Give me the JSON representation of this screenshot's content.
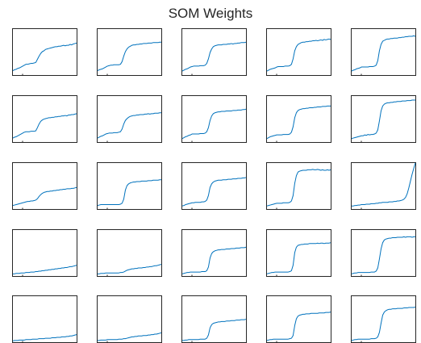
{
  "chart_data": {
    "type": "line",
    "title": "SOM Weights",
    "layout": {
      "rows": 5,
      "cols": 5
    },
    "line_color": "#0072BD",
    "axes_color": "#262626",
    "background": "#ffffff",
    "grid": false,
    "x": [
      1,
      2,
      3,
      4,
      5,
      6,
      7,
      8,
      9,
      10,
      11,
      12,
      13,
      14,
      15,
      16,
      17,
      18,
      19,
      20,
      21,
      22,
      23,
      24,
      25,
      26,
      27,
      28,
      29,
      30,
      31,
      32,
      33,
      34,
      35,
      36,
      37,
      38,
      39,
      40
    ],
    "xlim": [
      1,
      40
    ],
    "ylim": [
      0,
      1
    ],
    "neurons": [
      [
        0.08,
        0.1,
        0.11,
        0.13,
        0.14,
        0.16,
        0.18,
        0.2,
        0.22,
        0.22,
        0.23,
        0.24,
        0.24,
        0.25,
        0.26,
        0.33,
        0.4,
        0.46,
        0.5,
        0.52,
        0.55,
        0.56,
        0.57,
        0.58,
        0.59,
        0.6,
        0.61,
        0.61,
        0.62,
        0.62,
        0.63,
        0.64,
        0.63,
        0.64,
        0.64,
        0.66,
        0.65,
        0.67,
        0.68,
        0.69
      ],
      [
        0.08,
        0.1,
        0.11,
        0.12,
        0.14,
        0.16,
        0.18,
        0.19,
        0.2,
        0.2,
        0.21,
        0.21,
        0.21,
        0.21,
        0.22,
        0.28,
        0.4,
        0.5,
        0.56,
        0.6,
        0.62,
        0.64,
        0.65,
        0.65,
        0.66,
        0.66,
        0.67,
        0.67,
        0.68,
        0.68,
        0.68,
        0.69,
        0.69,
        0.69,
        0.7,
        0.7,
        0.7,
        0.7,
        0.71,
        0.71
      ],
      [
        0.07,
        0.09,
        0.11,
        0.12,
        0.14,
        0.16,
        0.17,
        0.18,
        0.18,
        0.18,
        0.18,
        0.19,
        0.19,
        0.19,
        0.2,
        0.24,
        0.34,
        0.48,
        0.56,
        0.61,
        0.63,
        0.64,
        0.65,
        0.65,
        0.65,
        0.66,
        0.66,
        0.66,
        0.67,
        0.67,
        0.68,
        0.67,
        0.68,
        0.68,
        0.69,
        0.69,
        0.7,
        0.7,
        0.7,
        0.71
      ],
      [
        0.07,
        0.09,
        0.11,
        0.12,
        0.13,
        0.14,
        0.16,
        0.17,
        0.17,
        0.17,
        0.17,
        0.18,
        0.18,
        0.18,
        0.19,
        0.22,
        0.34,
        0.52,
        0.61,
        0.66,
        0.68,
        0.7,
        0.71,
        0.71,
        0.72,
        0.72,
        0.73,
        0.73,
        0.74,
        0.74,
        0.75,
        0.74,
        0.75,
        0.76,
        0.75,
        0.77,
        0.76,
        0.77,
        0.78,
        0.77
      ],
      [
        0.07,
        0.09,
        0.1,
        0.12,
        0.13,
        0.14,
        0.16,
        0.16,
        0.16,
        0.16,
        0.16,
        0.17,
        0.17,
        0.17,
        0.18,
        0.2,
        0.3,
        0.52,
        0.66,
        0.73,
        0.75,
        0.77,
        0.78,
        0.78,
        0.79,
        0.79,
        0.8,
        0.8,
        0.8,
        0.81,
        0.81,
        0.82,
        0.82,
        0.83,
        0.83,
        0.84,
        0.84,
        0.84,
        0.85,
        0.84
      ],
      [
        0.07,
        0.09,
        0.1,
        0.12,
        0.14,
        0.16,
        0.18,
        0.2,
        0.21,
        0.21,
        0.21,
        0.22,
        0.22,
        0.22,
        0.23,
        0.3,
        0.38,
        0.44,
        0.47,
        0.49,
        0.5,
        0.51,
        0.52,
        0.52,
        0.53,
        0.53,
        0.54,
        0.54,
        0.55,
        0.55,
        0.56,
        0.56,
        0.57,
        0.56,
        0.58,
        0.58,
        0.59,
        0.59,
        0.6,
        0.61
      ],
      [
        0.07,
        0.09,
        0.11,
        0.12,
        0.14,
        0.16,
        0.17,
        0.18,
        0.18,
        0.18,
        0.19,
        0.19,
        0.19,
        0.2,
        0.21,
        0.27,
        0.38,
        0.46,
        0.5,
        0.53,
        0.55,
        0.56,
        0.57,
        0.57,
        0.58,
        0.58,
        0.59,
        0.59,
        0.59,
        0.6,
        0.6,
        0.61,
        0.6,
        0.61,
        0.61,
        0.62,
        0.62,
        0.62,
        0.63,
        0.63
      ],
      [
        0.06,
        0.08,
        0.1,
        0.11,
        0.13,
        0.14,
        0.16,
        0.16,
        0.16,
        0.16,
        0.16,
        0.17,
        0.17,
        0.17,
        0.18,
        0.21,
        0.3,
        0.46,
        0.56,
        0.61,
        0.63,
        0.64,
        0.65,
        0.65,
        0.66,
        0.66,
        0.66,
        0.67,
        0.67,
        0.67,
        0.67,
        0.68,
        0.68,
        0.68,
        0.69,
        0.69,
        0.69,
        0.7,
        0.7,
        0.71
      ],
      [
        0.06,
        0.08,
        0.1,
        0.11,
        0.12,
        0.13,
        0.14,
        0.14,
        0.14,
        0.14,
        0.15,
        0.15,
        0.15,
        0.15,
        0.16,
        0.2,
        0.32,
        0.52,
        0.63,
        0.68,
        0.7,
        0.71,
        0.72,
        0.72,
        0.73,
        0.73,
        0.74,
        0.74,
        0.74,
        0.75,
        0.75,
        0.76,
        0.76,
        0.76,
        0.77,
        0.77,
        0.77,
        0.78,
        0.78,
        0.78
      ],
      [
        0.06,
        0.07,
        0.08,
        0.09,
        0.1,
        0.11,
        0.12,
        0.12,
        0.14,
        0.13,
        0.15,
        0.14,
        0.15,
        0.15,
        0.16,
        0.18,
        0.25,
        0.45,
        0.67,
        0.78,
        0.82,
        0.84,
        0.85,
        0.85,
        0.86,
        0.86,
        0.87,
        0.87,
        0.88,
        0.88,
        0.88,
        0.89,
        0.89,
        0.89,
        0.9,
        0.9,
        0.9,
        0.91,
        0.91,
        0.91
      ],
      [
        0.06,
        0.07,
        0.08,
        0.09,
        0.1,
        0.11,
        0.12,
        0.13,
        0.14,
        0.15,
        0.15,
        0.16,
        0.16,
        0.17,
        0.18,
        0.21,
        0.26,
        0.3,
        0.33,
        0.35,
        0.36,
        0.37,
        0.37,
        0.38,
        0.38,
        0.39,
        0.39,
        0.4,
        0.4,
        0.41,
        0.41,
        0.42,
        0.42,
        0.43,
        0.43,
        0.43,
        0.44,
        0.44,
        0.45,
        0.46
      ],
      [
        0.06,
        0.07,
        0.08,
        0.08,
        0.08,
        0.08,
        0.08,
        0.08,
        0.08,
        0.08,
        0.08,
        0.08,
        0.08,
        0.08,
        0.09,
        0.11,
        0.2,
        0.4,
        0.5,
        0.54,
        0.56,
        0.57,
        0.58,
        0.58,
        0.59,
        0.59,
        0.59,
        0.6,
        0.6,
        0.6,
        0.6,
        0.61,
        0.61,
        0.61,
        0.62,
        0.62,
        0.62,
        0.62,
        0.63,
        0.63
      ],
      [
        0.05,
        0.06,
        0.08,
        0.09,
        0.1,
        0.11,
        0.12,
        0.12,
        0.13,
        0.13,
        0.13,
        0.13,
        0.14,
        0.14,
        0.15,
        0.18,
        0.28,
        0.46,
        0.54,
        0.58,
        0.6,
        0.61,
        0.62,
        0.62,
        0.62,
        0.63,
        0.63,
        0.63,
        0.64,
        0.64,
        0.64,
        0.65,
        0.65,
        0.65,
        0.66,
        0.66,
        0.66,
        0.67,
        0.67,
        0.68
      ],
      [
        0.05,
        0.06,
        0.07,
        0.08,
        0.09,
        0.1,
        0.11,
        0.11,
        0.11,
        0.11,
        0.12,
        0.12,
        0.12,
        0.12,
        0.13,
        0.16,
        0.28,
        0.55,
        0.72,
        0.8,
        0.82,
        0.83,
        0.84,
        0.84,
        0.84,
        0.85,
        0.85,
        0.85,
        0.86,
        0.85,
        0.85,
        0.86,
        0.85,
        0.84,
        0.85,
        0.84,
        0.84,
        0.85,
        0.84,
        0.85
      ],
      [
        0.05,
        0.05,
        0.06,
        0.06,
        0.07,
        0.07,
        0.08,
        0.08,
        0.08,
        0.09,
        0.09,
        0.09,
        0.1,
        0.1,
        0.1,
        0.11,
        0.11,
        0.12,
        0.12,
        0.13,
        0.13,
        0.13,
        0.13,
        0.14,
        0.14,
        0.14,
        0.15,
        0.15,
        0.16,
        0.16,
        0.17,
        0.18,
        0.2,
        0.24,
        0.32,
        0.45,
        0.6,
        0.75,
        0.88,
        1.0
      ],
      [
        0.03,
        0.03,
        0.04,
        0.04,
        0.04,
        0.05,
        0.05,
        0.05,
        0.06,
        0.06,
        0.06,
        0.07,
        0.07,
        0.07,
        0.08,
        0.08,
        0.09,
        0.09,
        0.1,
        0.1,
        0.11,
        0.11,
        0.12,
        0.12,
        0.13,
        0.13,
        0.14,
        0.14,
        0.15,
        0.15,
        0.16,
        0.16,
        0.17,
        0.17,
        0.18,
        0.19,
        0.19,
        0.2,
        0.21,
        0.22
      ],
      [
        0.03,
        0.03,
        0.04,
        0.04,
        0.04,
        0.05,
        0.05,
        0.05,
        0.05,
        0.05,
        0.05,
        0.05,
        0.05,
        0.05,
        0.06,
        0.06,
        0.07,
        0.09,
        0.11,
        0.12,
        0.13,
        0.14,
        0.14,
        0.15,
        0.15,
        0.16,
        0.16,
        0.16,
        0.17,
        0.17,
        0.18,
        0.18,
        0.19,
        0.19,
        0.2,
        0.21,
        0.21,
        0.22,
        0.23,
        0.24
      ],
      [
        0.03,
        0.04,
        0.05,
        0.06,
        0.06,
        0.07,
        0.07,
        0.07,
        0.07,
        0.07,
        0.07,
        0.07,
        0.08,
        0.08,
        0.08,
        0.1,
        0.18,
        0.38,
        0.48,
        0.52,
        0.54,
        0.55,
        0.56,
        0.56,
        0.57,
        0.57,
        0.57,
        0.58,
        0.58,
        0.58,
        0.59,
        0.59,
        0.59,
        0.6,
        0.6,
        0.6,
        0.61,
        0.61,
        0.61,
        0.62
      ],
      [
        0.03,
        0.04,
        0.05,
        0.06,
        0.06,
        0.07,
        0.07,
        0.07,
        0.07,
        0.07,
        0.07,
        0.07,
        0.07,
        0.07,
        0.08,
        0.1,
        0.22,
        0.5,
        0.62,
        0.66,
        0.67,
        0.68,
        0.68,
        0.69,
        0.69,
        0.69,
        0.7,
        0.7,
        0.7,
        0.7,
        0.7,
        0.71,
        0.7,
        0.71,
        0.71,
        0.7,
        0.71,
        0.71,
        0.71,
        0.72
      ],
      [
        0.03,
        0.04,
        0.05,
        0.05,
        0.06,
        0.06,
        0.06,
        0.06,
        0.06,
        0.06,
        0.06,
        0.06,
        0.07,
        0.07,
        0.07,
        0.09,
        0.16,
        0.36,
        0.58,
        0.72,
        0.78,
        0.8,
        0.81,
        0.82,
        0.82,
        0.83,
        0.83,
        0.83,
        0.84,
        0.84,
        0.84,
        0.84,
        0.85,
        0.84,
        0.85,
        0.85,
        0.85,
        0.84,
        0.85,
        0.85
      ],
      [
        0.01,
        0.02,
        0.02,
        0.02,
        0.03,
        0.03,
        0.03,
        0.03,
        0.04,
        0.04,
        0.04,
        0.04,
        0.05,
        0.05,
        0.05,
        0.05,
        0.06,
        0.06,
        0.06,
        0.06,
        0.07,
        0.07,
        0.07,
        0.07,
        0.08,
        0.08,
        0.08,
        0.09,
        0.09,
        0.09,
        0.1,
        0.1,
        0.1,
        0.11,
        0.11,
        0.12,
        0.12,
        0.13,
        0.14,
        0.15
      ],
      [
        0.02,
        0.02,
        0.03,
        0.03,
        0.03,
        0.03,
        0.04,
        0.04,
        0.04,
        0.04,
        0.04,
        0.04,
        0.04,
        0.05,
        0.05,
        0.05,
        0.06,
        0.06,
        0.07,
        0.08,
        0.09,
        0.1,
        0.1,
        0.11,
        0.11,
        0.12,
        0.12,
        0.12,
        0.13,
        0.13,
        0.13,
        0.14,
        0.14,
        0.15,
        0.15,
        0.16,
        0.16,
        0.17,
        0.18,
        0.19
      ],
      [
        0.02,
        0.02,
        0.03,
        0.03,
        0.04,
        0.04,
        0.04,
        0.04,
        0.04,
        0.04,
        0.04,
        0.05,
        0.05,
        0.05,
        0.05,
        0.07,
        0.14,
        0.3,
        0.37,
        0.4,
        0.41,
        0.42,
        0.43,
        0.43,
        0.44,
        0.44,
        0.44,
        0.45,
        0.45,
        0.45,
        0.46,
        0.46,
        0.46,
        0.47,
        0.47,
        0.47,
        0.48,
        0.48,
        0.48,
        0.49
      ],
      [
        0.02,
        0.03,
        0.04,
        0.04,
        0.05,
        0.05,
        0.05,
        0.05,
        0.05,
        0.05,
        0.05,
        0.05,
        0.05,
        0.05,
        0.06,
        0.07,
        0.13,
        0.35,
        0.5,
        0.56,
        0.58,
        0.59,
        0.6,
        0.6,
        0.61,
        0.61,
        0.61,
        0.62,
        0.62,
        0.62,
        0.62,
        0.62,
        0.63,
        0.63,
        0.63,
        0.63,
        0.64,
        0.64,
        0.64,
        0.65
      ],
      [
        0.02,
        0.03,
        0.04,
        0.04,
        0.05,
        0.05,
        0.05,
        0.05,
        0.05,
        0.05,
        0.05,
        0.05,
        0.06,
        0.06,
        0.06,
        0.07,
        0.1,
        0.2,
        0.4,
        0.58,
        0.65,
        0.68,
        0.7,
        0.71,
        0.71,
        0.72,
        0.72,
        0.72,
        0.73,
        0.73,
        0.73,
        0.73,
        0.74,
        0.74,
        0.74,
        0.75,
        0.75,
        0.75,
        0.75,
        0.76
      ]
    ]
  }
}
